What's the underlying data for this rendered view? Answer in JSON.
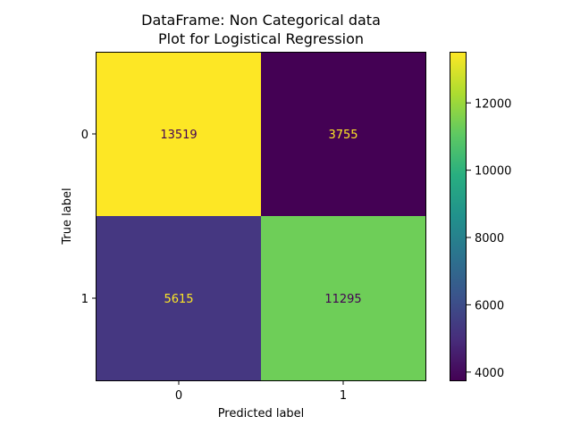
{
  "chart_data": {
    "type": "heatmap",
    "title": [
      "DataFrame: Non Categorical data",
      "Plot for Logistical Regression"
    ],
    "xlabel": "Predicted label",
    "ylabel": "True label",
    "x_categories": [
      "0",
      "1"
    ],
    "y_categories": [
      "0",
      "1"
    ],
    "values": [
      [
        13519,
        3755
      ],
      [
        5615,
        11295
      ]
    ],
    "value_labels": [
      "13519",
      "3755",
      "5615",
      "11295"
    ],
    "colormap": "viridis",
    "colorbar": {
      "range": [
        3755,
        13519
      ],
      "ticks": [
        4000,
        6000,
        8000,
        10000,
        12000
      ],
      "tick_labels": [
        "4000",
        "6000",
        "8000",
        "10000",
        "12000"
      ]
    },
    "cell_colors": [
      "#fde725",
      "#440154",
      "#453781",
      "#6ece58"
    ],
    "text_colors": {
      "on_dark": "#fde725",
      "on_light": "#440154"
    }
  }
}
